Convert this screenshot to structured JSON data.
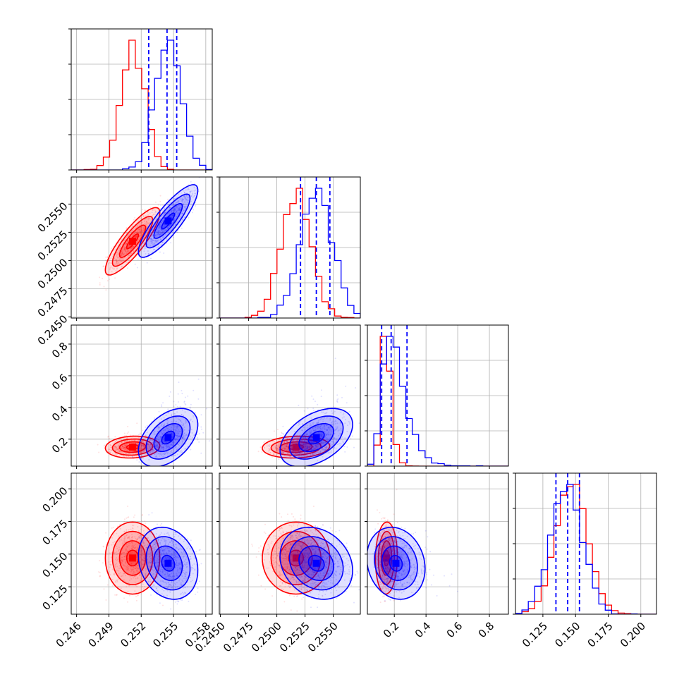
{
  "chart_data": {
    "type": "corner",
    "grid": true,
    "parameters": [
      {
        "range": [
          0.2455,
          0.2586
        ],
        "ticks": [
          0.246,
          0.249,
          0.252,
          0.255,
          0.258
        ],
        "tick_labels": [
          "0.246",
          "0.249",
          "0.252",
          "0.255",
          "0.258"
        ]
      },
      {
        "range": [
          0.2449,
          0.2574
        ],
        "ticks": [
          0.245,
          0.2475,
          0.25,
          0.2525,
          0.255
        ],
        "tick_labels": [
          "0.2450",
          "0.2475",
          "0.2500",
          "0.2525",
          "0.2550"
        ]
      },
      {
        "range": [
          0.03,
          0.92
        ],
        "ticks": [
          0.2,
          0.4,
          0.6,
          0.8
        ],
        "tick_labels": [
          "0.2",
          "0.4",
          "0.6",
          "0.8"
        ]
      },
      {
        "range": [
          0.104,
          0.212
        ],
        "ticks": [
          0.125,
          0.15,
          0.175,
          0.2
        ],
        "tick_labels": [
          "0.125",
          "0.150",
          "0.175",
          "0.200"
        ]
      }
    ],
    "series": [
      {
        "color": "#ff0000",
        "means": [
          0.2512,
          0.2517,
          0.15,
          0.147
        ],
        "sds": [
          0.0011,
          0.0013,
          0.03,
          0.012
        ],
        "corr": [
          [
            1,
            0.85,
            0.1,
            0.0
          ],
          [
            0.85,
            1,
            0.1,
            0.0
          ],
          [
            0.1,
            0.1,
            1,
            0.05
          ],
          [
            0.0,
            0.0,
            0.05,
            1
          ]
        ],
        "hist_peak_x": [
          0.2517,
          0.2515,
          0.15,
          0.148
        ]
      },
      {
        "color": "#0000ff",
        "means": [
          0.2545,
          0.2535,
          0.21,
          0.143
        ],
        "sds": [
          0.0012,
          0.0014,
          0.08,
          0.012
        ],
        "corr": [
          [
            1,
            0.85,
            0.45,
            -0.2
          ],
          [
            0.85,
            1,
            0.45,
            -0.2
          ],
          [
            0.45,
            0.45,
            1,
            -0.15
          ],
          [
            -0.2,
            -0.2,
            -0.15,
            1
          ]
        ],
        "hist_peak_x": [
          0.255,
          0.2537,
          0.15,
          0.145
        ]
      }
    ],
    "quantile_lines": {
      "color": "#0000ff",
      "values": [
        [
          0.2527,
          0.2544,
          0.2553
        ],
        [
          0.2521,
          0.2535,
          0.2547
        ],
        [
          0.12,
          0.18,
          0.28
        ],
        [
          0.135,
          0.144,
          0.153
        ]
      ]
    }
  }
}
